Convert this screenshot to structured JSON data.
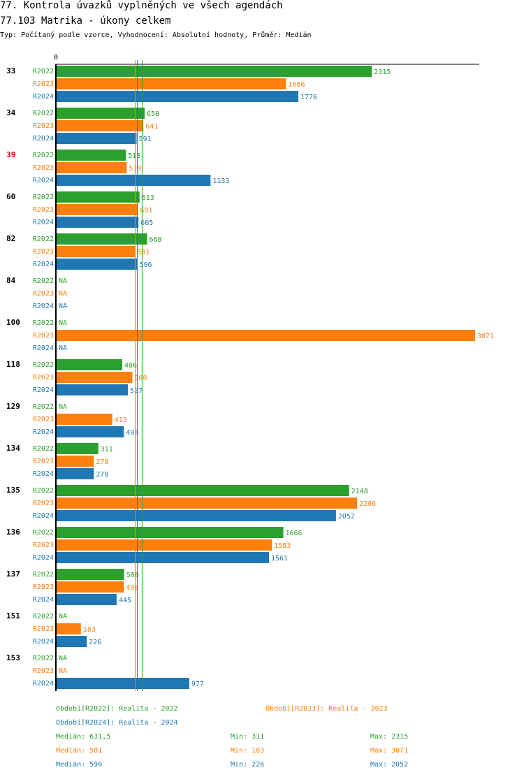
{
  "title_line1": "77. Kontrola úvazků vyplněných ve všech agendách",
  "title_line2": "77.103 Matrika - úkony celkem",
  "subtitle": "Typ: Počítaný podle vzorce, Vyhodnocení: Absolutní hodnoty, Průměr: Medián",
  "colors": {
    "R2022": "#2ca02c",
    "R2023": "#ff7f0e",
    "R2024": "#1f77b4",
    "highlight": "#cc0000"
  },
  "chart_data": {
    "type": "bar",
    "orientation": "horizontal",
    "title": "77.103 Matrika - úkony celkem",
    "xlim": [
      0,
      3071
    ],
    "tick_labels": [
      "0"
    ],
    "na_label": "NA",
    "highlighted_category": "39",
    "categories": [
      "33",
      "34",
      "39",
      "60",
      "82",
      "84",
      "100",
      "118",
      "129",
      "134",
      "135",
      "136",
      "137",
      "151",
      "153"
    ],
    "series": [
      {
        "name": "R2022",
        "values": [
          2315,
          650,
          513,
          613,
          668,
          null,
          null,
          486,
          null,
          311,
          2148,
          1666,
          500,
          null,
          null
        ]
      },
      {
        "name": "R2023",
        "values": [
          1686,
          641,
          519,
          601,
          581,
          null,
          3071,
          560,
          413,
          278,
          2206,
          1583,
          498,
          183,
          null
        ]
      },
      {
        "name": "R2024",
        "values": [
          1776,
          591,
          1133,
          605,
          596,
          null,
          null,
          527,
          498,
          278,
          2052,
          1561,
          445,
          226,
          977
        ]
      }
    ],
    "medians": {
      "R2022": 631.5,
      "R2023": 581,
      "R2024": 596
    }
  },
  "legend": {
    "items": [
      {
        "series": "R2022",
        "text": "Období[R2022]: Realita - 2022"
      },
      {
        "series": "R2023",
        "text": "Období[R2023]: Realita - 2023"
      },
      {
        "series": "R2024",
        "text": "Období[R2024]: Realita - 2024"
      }
    ]
  },
  "stats": [
    {
      "series": "R2022",
      "median": "Medián: 631,5",
      "min": "Min: 311",
      "max": "Max: 2315"
    },
    {
      "series": "R2023",
      "median": "Medián: 581",
      "min": "Min: 183",
      "max": "Max: 3071"
    },
    {
      "series": "R2024",
      "median": "Medián: 596",
      "min": "Min: 226",
      "max": "Max: 2052"
    }
  ]
}
